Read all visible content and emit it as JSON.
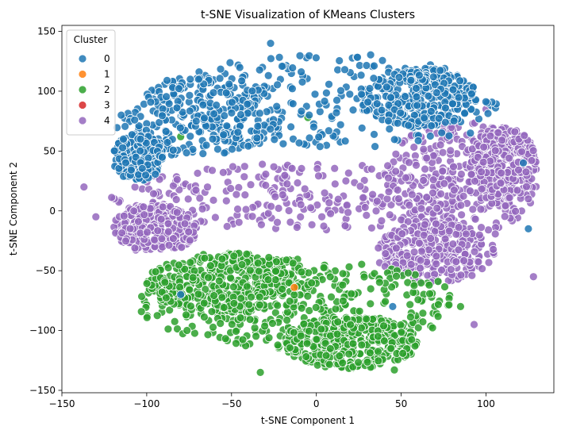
{
  "chart_data": {
    "type": "scatter",
    "title": "t-SNE Visualization of KMeans Clusters",
    "xlabel": "t-SNE Component 1",
    "ylabel": "t-SNE Component 2",
    "xlim": [
      -150,
      140
    ],
    "ylim": [
      -152,
      155
    ],
    "xticks": [
      -150,
      -100,
      -50,
      0,
      50,
      100
    ],
    "yticks": [
      -150,
      -100,
      -50,
      0,
      50,
      100,
      150
    ],
    "xtick_labels": [
      "−150",
      "−100",
      "−50",
      "0",
      "50",
      "100"
    ],
    "ytick_labels": [
      "−150",
      "−100",
      "−50",
      "0",
      "50",
      "100",
      "150"
    ],
    "grid": false,
    "legend": {
      "title": "Cluster",
      "placement": "top-left"
    },
    "series": [
      {
        "name": "0",
        "color": "#1f77b4",
        "count": 1100,
        "regions": [
          {
            "cx": 10,
            "cy": 92,
            "rx": 110,
            "ry": 40
          },
          {
            "cx": -70,
            "cy": 80,
            "rx": 50,
            "ry": 35
          },
          {
            "cx": 60,
            "cy": 95,
            "rx": 35,
            "ry": 25
          },
          {
            "cx": -105,
            "cy": 45,
            "rx": 15,
            "ry": 20
          }
        ],
        "extra_points": [
          {
            "x": -27,
            "y": 140
          },
          {
            "x": -115,
            "y": 80
          },
          {
            "x": 125,
            "y": -15
          },
          {
            "x": 122,
            "y": 40
          },
          {
            "x": -80,
            "y": -70
          },
          {
            "x": 45,
            "y": -80
          }
        ]
      },
      {
        "name": "1",
        "color": "#ff7f0e",
        "count": 0,
        "regions": [],
        "extra_points": [
          {
            "x": -13,
            "y": -64
          }
        ]
      },
      {
        "name": "2",
        "color": "#2ca02c",
        "count": 1100,
        "regions": [
          {
            "cx": -10,
            "cy": -78,
            "rx": 95,
            "ry": 38
          },
          {
            "cx": 20,
            "cy": -110,
            "rx": 40,
            "ry": 22
          },
          {
            "cx": -50,
            "cy": -60,
            "rx": 50,
            "ry": 25
          }
        ],
        "extra_points": [
          {
            "x": -33,
            "y": -135
          },
          {
            "x": 46,
            "y": -133
          },
          {
            "x": -5,
            "y": 78
          },
          {
            "x": -80,
            "y": 62
          },
          {
            "x": -115,
            "y": 58
          },
          {
            "x": 85,
            "y": -80
          }
        ]
      },
      {
        "name": "3",
        "color": "#d62728",
        "count": 0,
        "regions": [],
        "extra_points": []
      },
      {
        "name": "4",
        "color": "#9467bd",
        "count": 1400,
        "regions": [
          {
            "cx": 0,
            "cy": 12,
            "rx": 125,
            "ry": 28
          },
          {
            "cx": 85,
            "cy": 25,
            "rx": 45,
            "ry": 50
          },
          {
            "cx": 70,
            "cy": -35,
            "rx": 35,
            "ry": 25
          },
          {
            "cx": 110,
            "cy": 40,
            "rx": 20,
            "ry": 30
          },
          {
            "cx": -95,
            "cy": -15,
            "rx": 25,
            "ry": 20
          }
        ],
        "extra_points": [
          {
            "x": -137,
            "y": 20
          },
          {
            "x": 128,
            "y": -55
          },
          {
            "x": 100,
            "y": 85
          },
          {
            "x": 93,
            "y": -95
          },
          {
            "x": 125,
            "y": 10
          },
          {
            "x": -130,
            "y": -5
          }
        ]
      }
    ]
  }
}
